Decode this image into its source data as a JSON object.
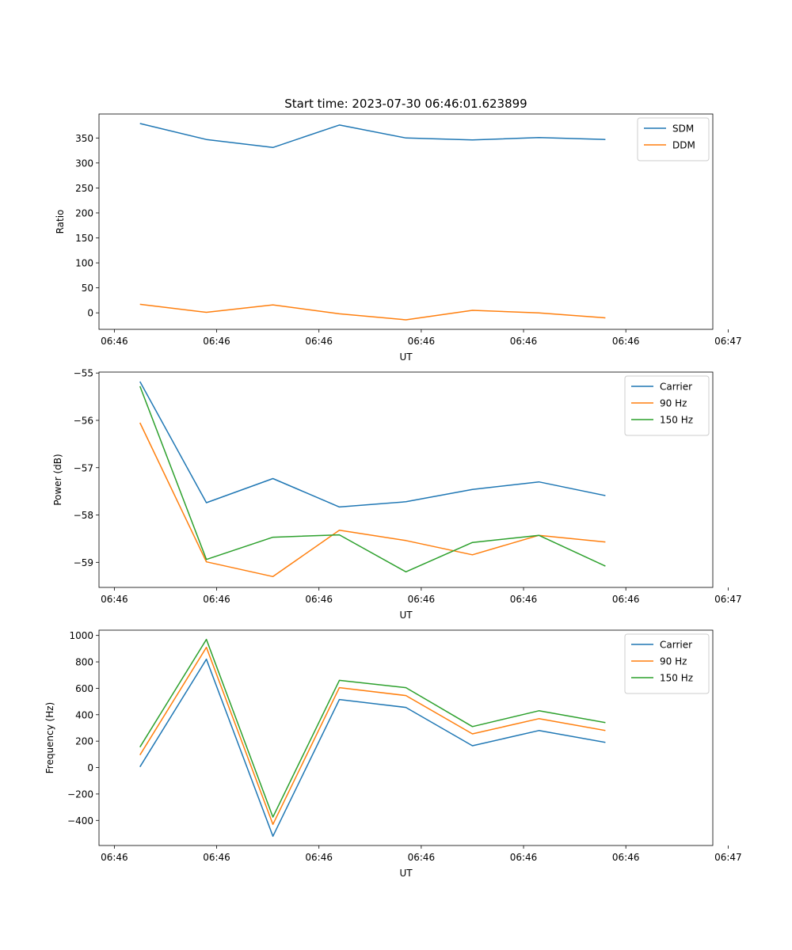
{
  "figure_title": "Start time: 2023-07-30 06:46:01.623899",
  "colors": {
    "blue": "#1f77b4",
    "orange": "#ff7f0e",
    "green": "#2ca02c",
    "axis": "#000000",
    "background": "#ffffff"
  },
  "chart_data": [
    {
      "type": "line",
      "title": "Start time: 2023-07-30 06:46:01.623899",
      "xlabel": "UT",
      "ylabel": "Ratio",
      "xlim": [
        -0.4,
        5.6
      ],
      "ylim": [
        -33,
        398
      ],
      "x": [
        0.0,
        0.65,
        1.3,
        1.95,
        2.6,
        3.25,
        3.9,
        4.55
      ],
      "x_ticks": [
        -0.25,
        0.75,
        1.75,
        2.75,
        3.75,
        4.75,
        5.75
      ],
      "x_tick_labels": [
        "06:46",
        "06:46",
        "06:46",
        "06:46",
        "06:46",
        "06:46",
        "06:47"
      ],
      "y_ticks": [
        0,
        50,
        100,
        150,
        200,
        250,
        300,
        350
      ],
      "y_tick_labels": [
        "0",
        "50",
        "100",
        "150",
        "200",
        "250",
        "300",
        "350"
      ],
      "legend_position": "upper right",
      "series": [
        {
          "name": "SDM",
          "color": "#1f77b4",
          "values": [
            379,
            347,
            331,
            376,
            350,
            346,
            351,
            347
          ]
        },
        {
          "name": "DDM",
          "color": "#ff7f0e",
          "values": [
            17,
            1,
            16,
            -2,
            -14,
            5,
            0,
            -10
          ]
        }
      ]
    },
    {
      "type": "line",
      "title": "",
      "xlabel": "UT",
      "ylabel": "Power (dB)",
      "xlim": [
        -0.4,
        5.6
      ],
      "ylim": [
        -59.53,
        -54.98
      ],
      "x": [
        0.0,
        0.65,
        1.3,
        1.95,
        2.6,
        3.25,
        3.9,
        4.55
      ],
      "x_ticks": [
        -0.25,
        0.75,
        1.75,
        2.75,
        3.75,
        4.75,
        5.75
      ],
      "x_tick_labels": [
        "06:46",
        "06:46",
        "06:46",
        "06:46",
        "06:46",
        "06:46",
        "06:47"
      ],
      "y_ticks": [
        -59,
        -58,
        -57,
        -56,
        -55
      ],
      "y_tick_labels": [
        "−59",
        "−58",
        "−57",
        "−56",
        "−55"
      ],
      "legend_position": "upper right",
      "series": [
        {
          "name": "Carrier",
          "color": "#1f77b4",
          "values": [
            -55.18,
            -57.74,
            -57.23,
            -57.83,
            -57.72,
            -57.46,
            -57.3,
            -57.59
          ]
        },
        {
          "name": "90 Hz",
          "color": "#ff7f0e",
          "values": [
            -56.05,
            -58.99,
            -59.3,
            -58.32,
            -58.54,
            -58.84,
            -58.43,
            -58.57
          ]
        },
        {
          "name": "150 Hz",
          "color": "#2ca02c",
          "values": [
            -55.28,
            -58.94,
            -58.47,
            -58.42,
            -59.2,
            -58.58,
            -58.43,
            -59.08
          ]
        }
      ]
    },
    {
      "type": "line",
      "title": "",
      "xlabel": "UT",
      "ylabel": "Frequency (Hz)",
      "xlim": [
        -0.4,
        5.6
      ],
      "ylim": [
        -590,
        1040
      ],
      "x": [
        0.0,
        0.65,
        1.3,
        1.95,
        2.6,
        3.25,
        3.9,
        4.55
      ],
      "x_ticks": [
        -0.25,
        0.75,
        1.75,
        2.75,
        3.75,
        4.75,
        5.75
      ],
      "x_tick_labels": [
        "06:46",
        "06:46",
        "06:46",
        "06:46",
        "06:46",
        "06:46",
        "06:47"
      ],
      "y_ticks": [
        -400,
        -200,
        0,
        200,
        400,
        600,
        800,
        1000
      ],
      "y_tick_labels": [
        "−400",
        "−200",
        "0",
        "200",
        "400",
        "600",
        "800",
        "1000"
      ],
      "legend_position": "upper right",
      "series": [
        {
          "name": "Carrier",
          "color": "#1f77b4",
          "values": [
            5,
            820,
            -520,
            515,
            455,
            165,
            280,
            190
          ]
        },
        {
          "name": "90 Hz",
          "color": "#ff7f0e",
          "values": [
            95,
            910,
            -430,
            605,
            545,
            255,
            370,
            280
          ]
        },
        {
          "name": "150 Hz",
          "color": "#2ca02c",
          "values": [
            155,
            970,
            -375,
            660,
            605,
            310,
            430,
            340
          ]
        }
      ]
    }
  ]
}
